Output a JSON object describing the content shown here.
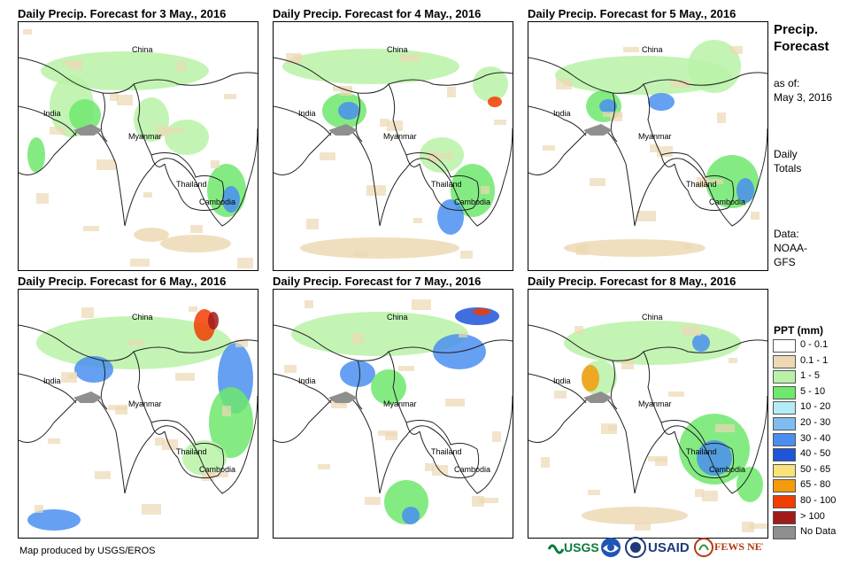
{
  "panels": [
    {
      "title": "Daily Precip. Forecast for 3 May., 2016",
      "labels": [
        "China",
        "India",
        "Myanmar",
        "Thailand",
        "Cambodia"
      ]
    },
    {
      "title": "Daily Precip. Forecast for 4 May., 2016",
      "labels": [
        "China",
        "India",
        "Myanmar",
        "Thailand",
        "Cambodia"
      ]
    },
    {
      "title": "Daily Precip. Forecast for 5 May., 2016",
      "labels": [
        "China",
        "India",
        "Myanmar",
        "Thailand",
        "Cambodia"
      ]
    },
    {
      "title": "Daily Precip. Forecast for 6 May., 2016",
      "labels": [
        "China",
        "India",
        "Myanmar",
        "Thailand",
        "Cambodia"
      ]
    },
    {
      "title": "Daily Precip. Forecast for 7 May., 2016",
      "labels": [
        "China",
        "India",
        "Myanmar",
        "Thailand",
        "Cambodia"
      ]
    },
    {
      "title": "Daily Precip. Forecast for 8 May., 2016",
      "labels": [
        "China",
        "India",
        "Myanmar",
        "Thailand",
        "Cambodia"
      ]
    }
  ],
  "sidebar": {
    "title_line1": "Precip.",
    "title_line2": "Forecast",
    "asof_line1": "as of:",
    "asof_line2": "May 3, 2016",
    "totals_line1": "Daily",
    "totals_line2": "Totals",
    "data_line1": "Data:",
    "data_line2": "NOAA-",
    "data_line3": "GFS"
  },
  "legend": {
    "title": "PPT (mm)",
    "items": [
      {
        "label": "0 - 0.1",
        "color": "#ffffff"
      },
      {
        "label": "0.1 - 1",
        "color": "#ecd9b4"
      },
      {
        "label": "1 - 5",
        "color": "#b9f2a7"
      },
      {
        "label": "5 - 10",
        "color": "#6ee86d"
      },
      {
        "label": "10 - 20",
        "color": "#b4ecf6"
      },
      {
        "label": "20 - 30",
        "color": "#7fbdf0"
      },
      {
        "label": "30 - 40",
        "color": "#4a8ff0"
      },
      {
        "label": "40 - 50",
        "color": "#1f55d9"
      },
      {
        "label": "50 - 65",
        "color": "#f9e27b"
      },
      {
        "label": "65 - 80",
        "color": "#f59a0b"
      },
      {
        "label": "80 - 100",
        "color": "#f23c00"
      },
      {
        "label": "> 100",
        "color": "#a11b1b"
      },
      {
        "label": "No Data",
        "color": "#8f8f8f"
      }
    ]
  },
  "footer": {
    "credit": "Map produced by USGS/EROS",
    "logos": [
      "USGS",
      "USAID",
      "FEWS NET"
    ]
  }
}
